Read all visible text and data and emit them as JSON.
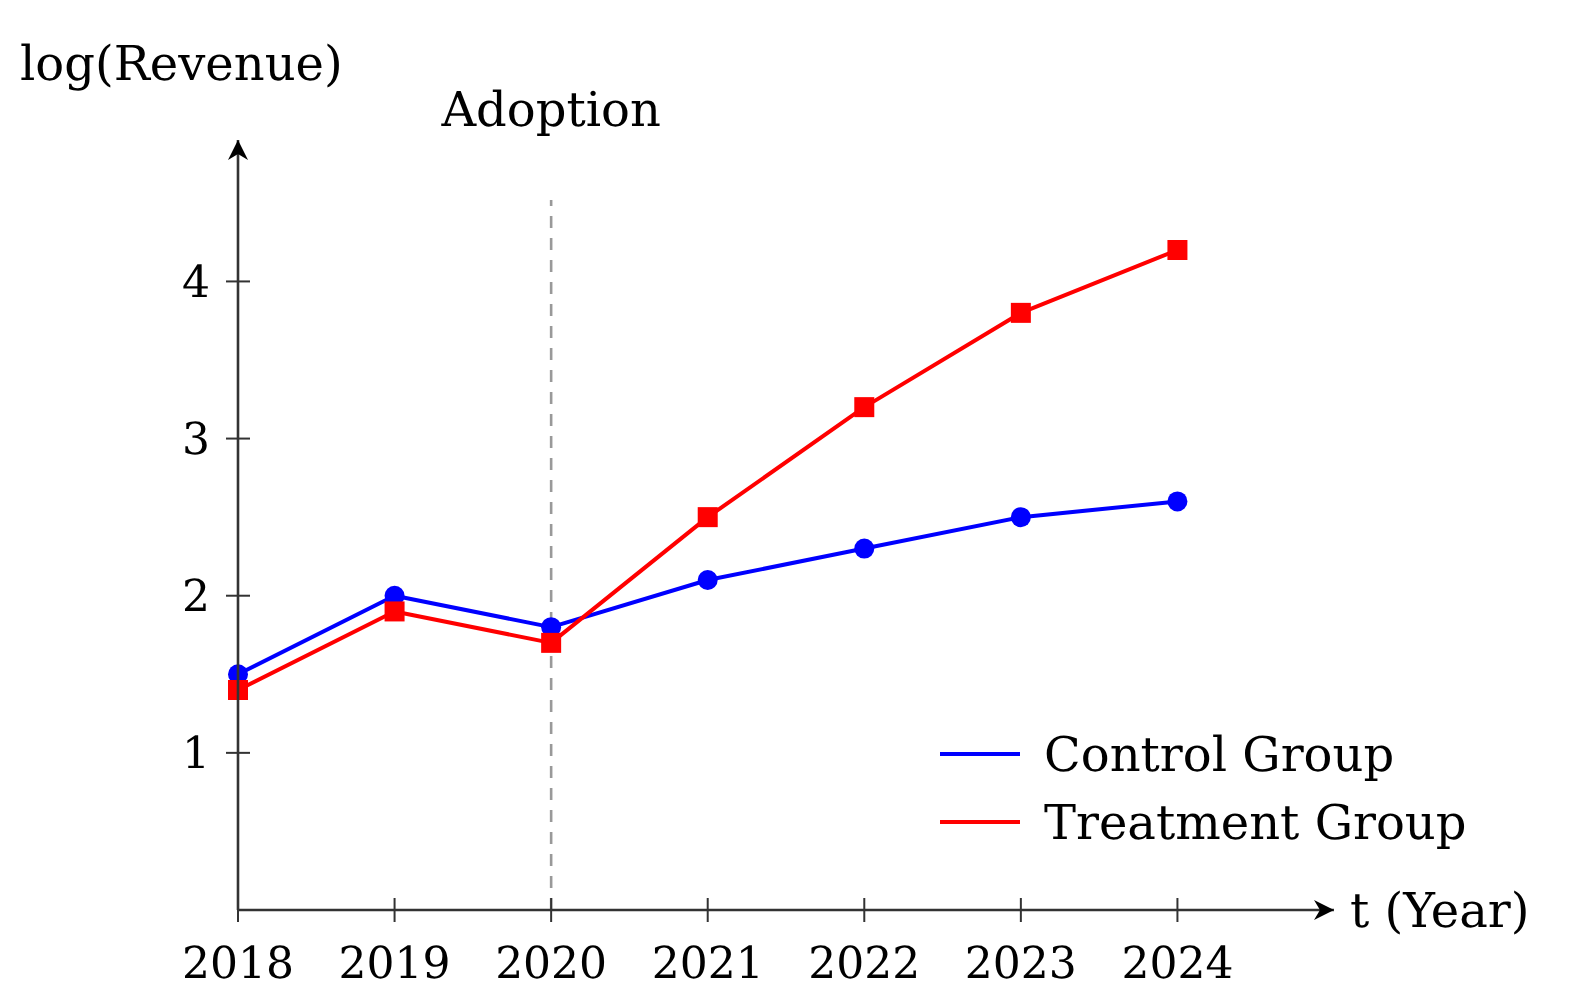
{
  "chart_data": {
    "type": "line",
    "ylabel": "log(Revenue)",
    "xlabel": "t (Year)",
    "x": [
      2018,
      2019,
      2020,
      2021,
      2022,
      2023,
      2024
    ],
    "xlim": [
      2018,
      2025
    ],
    "xticks": [
      2018,
      2019,
      2020,
      2021,
      2022,
      2023,
      2024
    ],
    "ylim": [
      0,
      4.9
    ],
    "yticks": [
      1,
      2,
      3,
      4
    ],
    "series": [
      {
        "name": "Control Group",
        "color": "#0000ff",
        "marker": "circle",
        "values": [
          1.5,
          2.0,
          1.8,
          2.1,
          2.3,
          2.5,
          2.6
        ]
      },
      {
        "name": "Treatment Group",
        "color": "#ff0000",
        "marker": "square",
        "values": [
          1.4,
          1.9,
          1.7,
          2.5,
          3.2,
          3.8,
          4.2
        ]
      }
    ],
    "ref_lines": [
      {
        "axis": "x",
        "value": 2020,
        "label": "Adoption",
        "color": "#999999",
        "line_style": "dashed"
      }
    ],
    "grid": false,
    "legend": "bottom right"
  }
}
